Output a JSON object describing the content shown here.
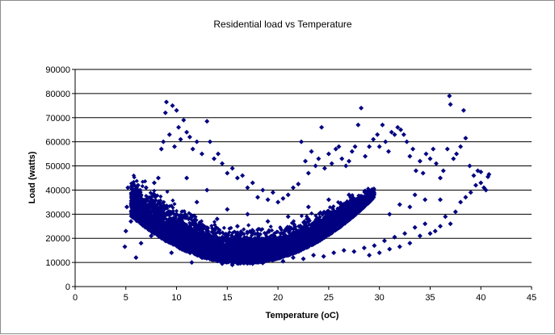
{
  "chart_data": {
    "type": "scatter",
    "title": "Residential load vs Temperature",
    "xlabel": "Temperature (oC)",
    "ylabel": "Load (watts)",
    "xlim": [
      0,
      45
    ],
    "ylim": [
      0,
      90000
    ],
    "x_ticks": [
      0,
      5,
      10,
      15,
      20,
      25,
      30,
      35,
      40,
      45
    ],
    "y_ticks": [
      0,
      10000,
      20000,
      30000,
      40000,
      50000,
      60000,
      70000,
      80000,
      90000
    ],
    "grid": "horizontal major gridlines",
    "legend": "none",
    "marker": "diamond",
    "series": [
      {
        "color": "#000080",
        "points": [
          [
            4.9,
            16500
          ],
          [
            5.0,
            23000
          ],
          [
            5.1,
            33000
          ],
          [
            5.2,
            41000
          ],
          [
            5.5,
            27000
          ],
          [
            5.7,
            35000
          ],
          [
            6.0,
            12000
          ],
          [
            6.2,
            42000
          ],
          [
            6.5,
            38000
          ],
          [
            7.0,
            41000
          ],
          [
            7.5,
            37000
          ],
          [
            7.8,
            43000
          ],
          [
            8.2,
            45000
          ],
          [
            8.5,
            57000
          ],
          [
            8.7,
            60000
          ],
          [
            8.9,
            72000
          ],
          [
            9.0,
            76500
          ],
          [
            9.3,
            63000
          ],
          [
            9.6,
            75000
          ],
          [
            9.8,
            58000
          ],
          [
            10.0,
            73000
          ],
          [
            10.2,
            66000
          ],
          [
            10.4,
            61000
          ],
          [
            10.7,
            69000
          ],
          [
            11.0,
            64000
          ],
          [
            11.3,
            62000
          ],
          [
            11.6,
            57000
          ],
          [
            12.0,
            60000
          ],
          [
            12.5,
            55000
          ],
          [
            13.0,
            68500
          ],
          [
            13.3,
            60000
          ],
          [
            13.7,
            53000
          ],
          [
            14.1,
            55000
          ],
          [
            14.5,
            51000
          ],
          [
            15.0,
            47000
          ],
          [
            15.5,
            49000
          ],
          [
            16.0,
            45000
          ],
          [
            16.5,
            46000
          ],
          [
            17.0,
            41000
          ],
          [
            17.5,
            43000
          ],
          [
            18.0,
            37000
          ],
          [
            18.5,
            40000
          ],
          [
            19.0,
            36000
          ],
          [
            19.5,
            39000
          ],
          [
            20.0,
            35000
          ],
          [
            20.5,
            36500
          ],
          [
            21.0,
            38000
          ],
          [
            21.5,
            41000
          ],
          [
            22.0,
            42500
          ],
          [
            22.3,
            60000
          ],
          [
            22.7,
            52000
          ],
          [
            23.0,
            47000
          ],
          [
            23.3,
            56000
          ],
          [
            23.7,
            50000
          ],
          [
            24.0,
            53000
          ],
          [
            24.3,
            66000
          ],
          [
            24.6,
            49000
          ],
          [
            25.0,
            55000
          ],
          [
            25.3,
            51000
          ],
          [
            25.7,
            57000
          ],
          [
            26.0,
            58000
          ],
          [
            26.3,
            53000
          ],
          [
            26.7,
            50000
          ],
          [
            27.0,
            52000
          ],
          [
            27.3,
            56000
          ],
          [
            27.6,
            58000
          ],
          [
            27.9,
            67000
          ],
          [
            28.2,
            74000
          ],
          [
            28.6,
            54000
          ],
          [
            29.0,
            58000
          ],
          [
            29.4,
            61000
          ],
          [
            29.8,
            63000
          ],
          [
            30.0,
            58000
          ],
          [
            30.3,
            67000
          ],
          [
            30.6,
            60000
          ],
          [
            30.9,
            56000
          ],
          [
            31.2,
            64000
          ],
          [
            31.5,
            63000
          ],
          [
            31.8,
            66000
          ],
          [
            32.1,
            65000
          ],
          [
            32.4,
            63000
          ],
          [
            32.7,
            60000
          ],
          [
            33.0,
            54000
          ],
          [
            33.3,
            57000
          ],
          [
            33.6,
            48000
          ],
          [
            34.0,
            52000
          ],
          [
            34.3,
            47000
          ],
          [
            34.6,
            55000
          ],
          [
            35.0,
            53000
          ],
          [
            35.3,
            57000
          ],
          [
            35.6,
            51000
          ],
          [
            36.0,
            45000
          ],
          [
            36.3,
            48000
          ],
          [
            36.7,
            57000
          ],
          [
            36.9,
            79000
          ],
          [
            37.0,
            75500
          ],
          [
            37.3,
            53000
          ],
          [
            37.6,
            55000
          ],
          [
            38.0,
            58000
          ],
          [
            38.3,
            73000
          ],
          [
            38.5,
            61500
          ],
          [
            38.9,
            50000
          ],
          [
            39.3,
            46000
          ],
          [
            39.7,
            48000
          ],
          [
            40.0,
            47500
          ],
          [
            40.5,
            40000
          ],
          [
            40.7,
            45500
          ],
          [
            40.8,
            46500
          ],
          [
            29.0,
            13000
          ],
          [
            29.5,
            17000
          ],
          [
            30.0,
            14000
          ],
          [
            30.5,
            19000
          ],
          [
            31.0,
            15500
          ],
          [
            31.5,
            20500
          ],
          [
            32.0,
            16500
          ],
          [
            32.5,
            22000
          ],
          [
            33.0,
            18000
          ],
          [
            33.5,
            24500
          ],
          [
            34.0,
            21000
          ],
          [
            34.5,
            26000
          ],
          [
            35.0,
            22000
          ],
          [
            35.5,
            23000
          ],
          [
            36.0,
            25000
          ],
          [
            36.5,
            29000
          ],
          [
            37.0,
            26000
          ],
          [
            37.5,
            31000
          ],
          [
            38.0,
            35000
          ],
          [
            38.5,
            37000
          ],
          [
            39.0,
            39000
          ],
          [
            39.5,
            42000
          ],
          [
            40.0,
            43000
          ],
          [
            40.3,
            41000
          ],
          [
            31.0,
            30000
          ],
          [
            32.0,
            34000
          ],
          [
            33.0,
            33000
          ],
          [
            33.5,
            38000
          ],
          [
            34.5,
            36000
          ],
          [
            36.0,
            36000
          ],
          [
            6.5,
            18000
          ],
          [
            7.5,
            21000
          ],
          [
            8.5,
            24000
          ],
          [
            9.5,
            14000
          ],
          [
            10.5,
            16000
          ],
          [
            11.5,
            10000
          ],
          [
            12.5,
            12000
          ],
          [
            13.5,
            15000
          ],
          [
            14.5,
            9500
          ],
          [
            15.5,
            9000
          ],
          [
            16.5,
            10000
          ],
          [
            17.5,
            9500
          ],
          [
            18.5,
            9800
          ],
          [
            19.5,
            11000
          ],
          [
            20.5,
            10500
          ],
          [
            21.5,
            12000
          ],
          [
            22.5,
            11500
          ],
          [
            23.5,
            13000
          ],
          [
            24.5,
            12500
          ],
          [
            25.5,
            14000
          ],
          [
            26.5,
            15000
          ],
          [
            27.5,
            14500
          ],
          [
            28.5,
            16000
          ],
          [
            10,
            30000
          ],
          [
            12,
            35000
          ],
          [
            14,
            28000
          ],
          [
            16,
            25000
          ],
          [
            18,
            22000
          ],
          [
            20,
            20000
          ],
          [
            22,
            23000
          ],
          [
            24,
            26000
          ],
          [
            26,
            28000
          ],
          [
            11,
            45000
          ],
          [
            13,
            40000
          ],
          [
            15,
            32000
          ],
          [
            17,
            30000
          ],
          [
            19,
            27000
          ],
          [
            21,
            29000
          ],
          [
            23,
            33000
          ],
          [
            25,
            36000
          ],
          [
            27,
            38000
          ]
        ]
      }
    ]
  }
}
